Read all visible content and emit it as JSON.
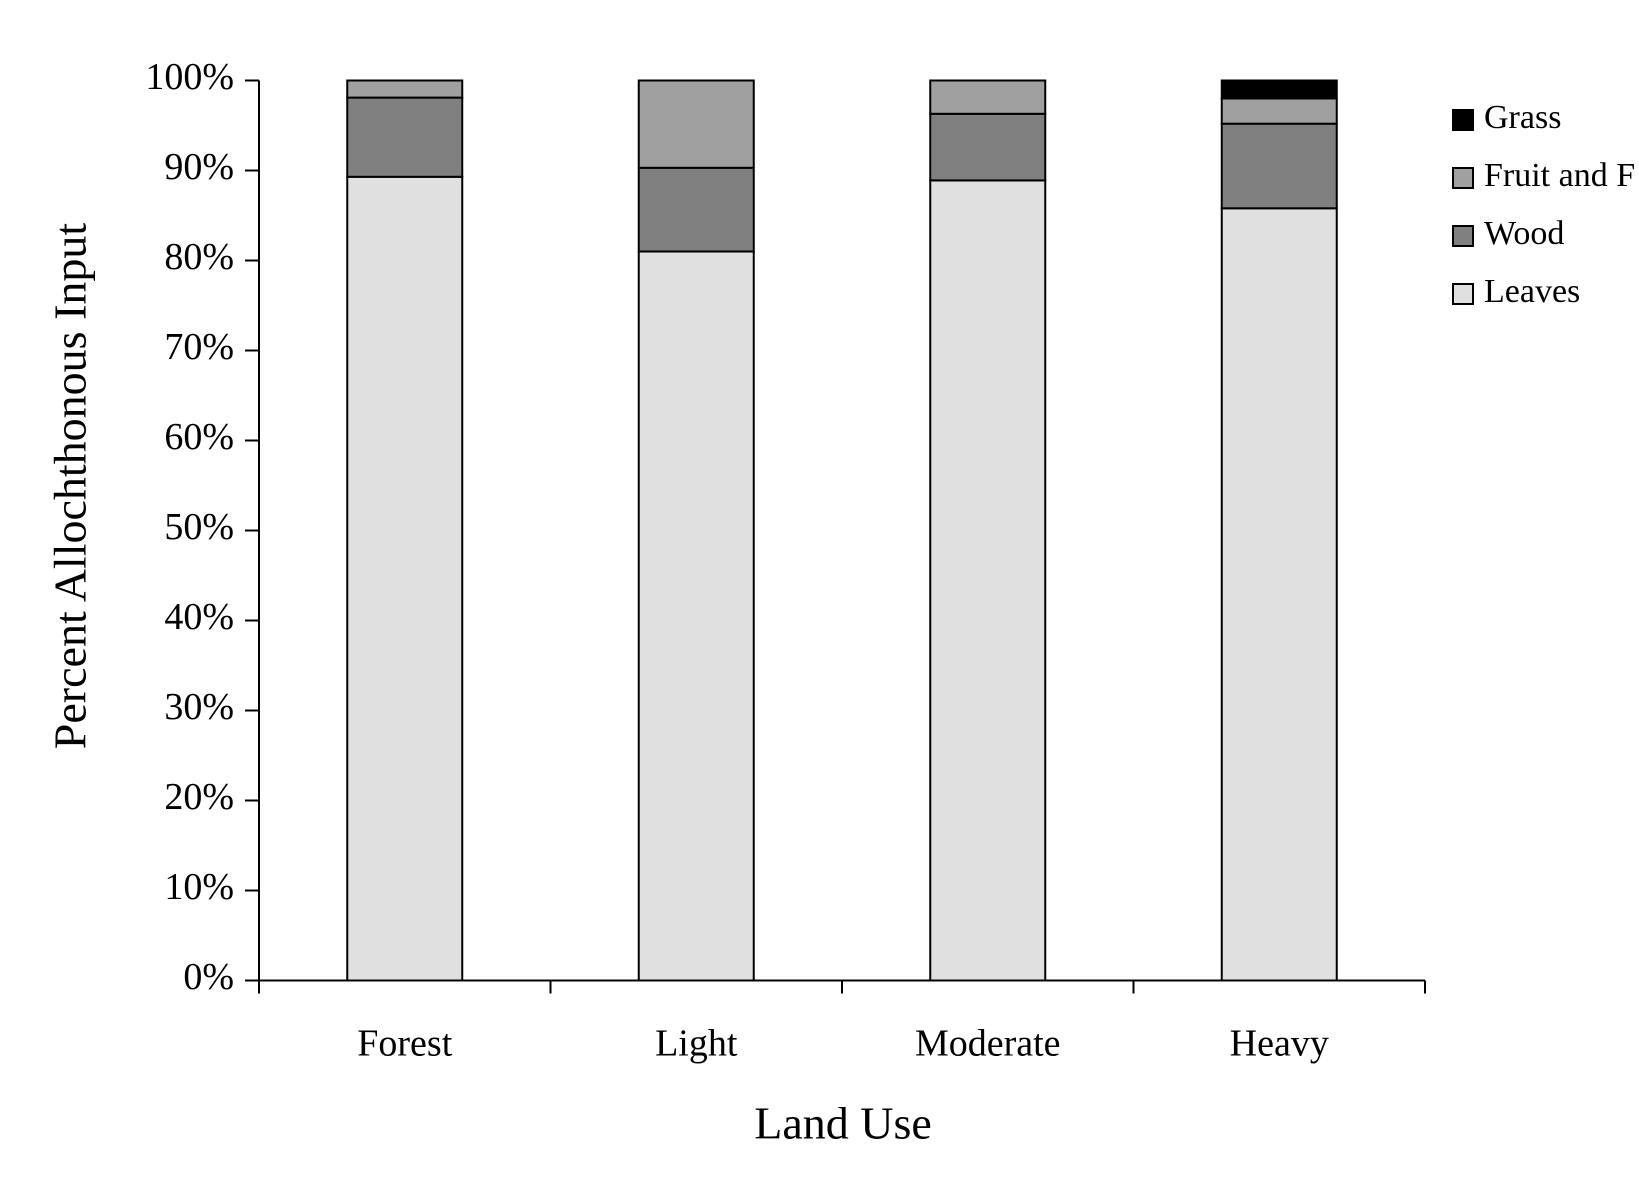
{
  "chart_data": {
    "type": "stacked_bar",
    "x_label": "Land Use",
    "y_label": "Percent Allochthonous Input",
    "categories": [
      "Forest",
      "Light",
      "Moderate",
      "Heavy"
    ],
    "series": [
      {
        "name": "Leaves",
        "color": "#e0e0e0",
        "values": [
          89.3,
          81,
          88.9,
          85.8
        ]
      },
      {
        "name": "Wood",
        "color": "#808080",
        "values": [
          8.8,
          9.3,
          7.4,
          9.4
        ]
      },
      {
        "name": "Fruit and F",
        "color": "#a0a0a0",
        "values": [
          1.9,
          9.7,
          3.7,
          2.8
        ]
      },
      {
        "name": "Grass",
        "color": "#000000",
        "values": [
          0,
          0,
          0,
          2.0
        ]
      }
    ],
    "ylim": [
      0,
      100
    ],
    "yticks": [
      {
        "value": 0,
        "label": "0%"
      },
      {
        "value": 10,
        "label": "10%"
      },
      {
        "value": 20,
        "label": "20%"
      },
      {
        "value": 30,
        "label": "30%"
      },
      {
        "value": 40,
        "label": "40%"
      },
      {
        "value": 50,
        "label": "50%"
      },
      {
        "value": 60,
        "label": "60%"
      },
      {
        "value": 70,
        "label": "70%"
      },
      {
        "value": 80,
        "label": "80%"
      },
      {
        "value": 90,
        "label": "90%"
      },
      {
        "value": 100,
        "label": "100%"
      }
    ],
    "grid": false,
    "legend": "right"
  }
}
